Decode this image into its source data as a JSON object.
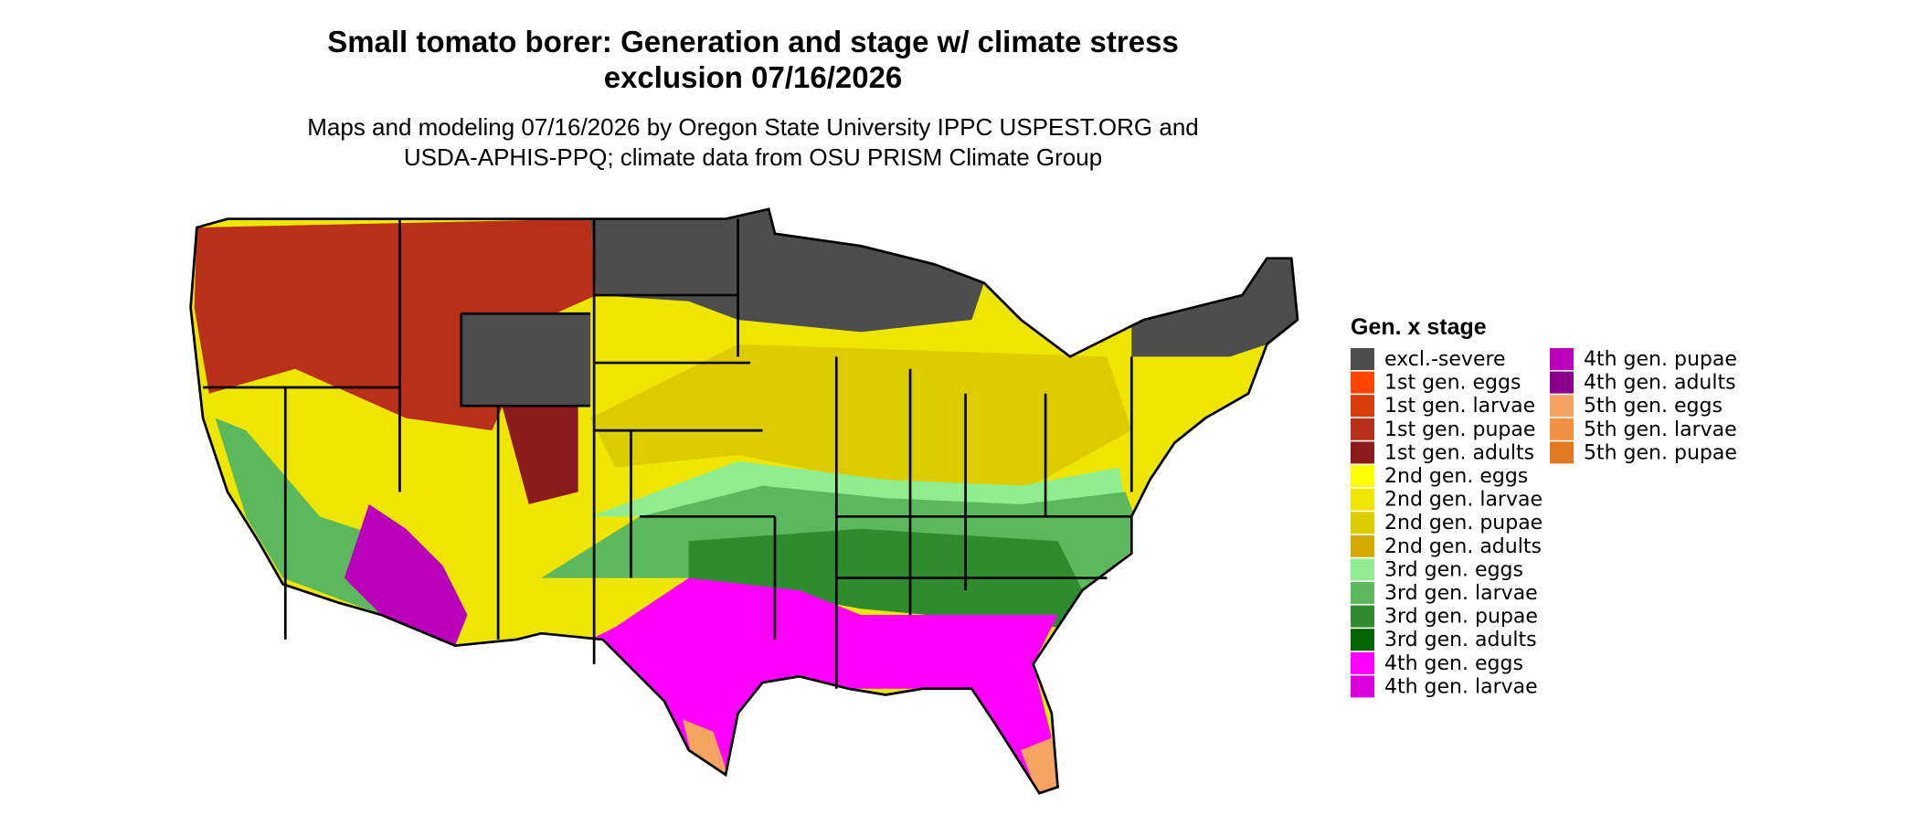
{
  "header": {
    "title_lines": [
      "Small tomato borer: Generation and stage w/ climate stress",
      "exclusion 07/16/2026"
    ],
    "subtitle_lines": [
      "Maps and modeling 07/16/2026 by Oregon State University IPPC USPEST.ORG and",
      "USDA-APHIS-PPQ; climate data from OSU PRISM Climate Group"
    ]
  },
  "legend": {
    "title": "Gen. x stage",
    "items": [
      {
        "label": "excl.-severe",
        "color": "#4d4d4d"
      },
      {
        "label": "1st gen. eggs",
        "color": "#ff4500"
      },
      {
        "label": "1st gen. larvae",
        "color": "#d93d0a"
      },
      {
        "label": "1st gen. pupae",
        "color": "#b8301a"
      },
      {
        "label": "1st gen. adults",
        "color": "#8b1a1a"
      },
      {
        "label": "2nd gen. eggs",
        "color": "#ffff00"
      },
      {
        "label": "2nd gen. larvae",
        "color": "#eee600"
      },
      {
        "label": "2nd gen. pupae",
        "color": "#ddcc00"
      },
      {
        "label": "2nd gen. adults",
        "color": "#d4aa00"
      },
      {
        "label": "3rd gen. eggs",
        "color": "#90ee90"
      },
      {
        "label": "3rd gen. larvae",
        "color": "#5cb85c"
      },
      {
        "label": "3rd gen. pupae",
        "color": "#2e8b2e"
      },
      {
        "label": "3rd gen. adults",
        "color": "#006400"
      },
      {
        "label": "4th gen. eggs",
        "color": "#ff00ff"
      },
      {
        "label": "4th gen. larvae",
        "color": "#dd00dd"
      },
      {
        "label": "4th gen. pupae",
        "color": "#bb00bb"
      },
      {
        "label": "4th gen. adults",
        "color": "#8b008b"
      },
      {
        "label": "5th gen. eggs",
        "color": "#f4a460"
      },
      {
        "label": "5th gen. larvae",
        "color": "#f09040"
      },
      {
        "label": "5th gen. pupae",
        "color": "#e07a20"
      }
    ]
  }
}
